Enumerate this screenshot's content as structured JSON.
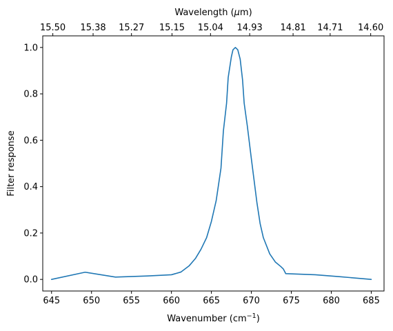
{
  "chart_data": {
    "type": "line",
    "xlabel": "Wavenumber (cm",
    "xlabel_sup": "−1",
    "xlabel_end": ")",
    "ylabel": "Filter response",
    "top_xlabel": "Wavelength (",
    "top_xlabel_greek": "μ",
    "top_xlabel_end": "m)",
    "xlim": [
      643.9,
      686.6
    ],
    "ylim": [
      -0.05,
      1.05
    ],
    "grid": false,
    "line_color": "#1f77b4",
    "x_ticks": [
      645,
      650,
      655,
      660,
      665,
      670,
      675,
      680,
      685
    ],
    "x_tick_labels": [
      "645",
      "650",
      "655",
      "660",
      "665",
      "670",
      "675",
      "680",
      "685"
    ],
    "y_ticks": [
      0.0,
      0.2,
      0.4,
      0.6,
      0.8,
      1.0
    ],
    "y_tick_labels": [
      "0.0",
      "0.2",
      "0.4",
      "0.6",
      "0.8",
      "1.0"
    ],
    "top_ticks": [
      {
        "x": 645.16,
        "label": "15.50"
      },
      {
        "x": 650.2,
        "label": "15.38"
      },
      {
        "x": 655.0,
        "label": "15.27"
      },
      {
        "x": 660.07,
        "label": "15.15"
      },
      {
        "x": 664.89,
        "label": "15.04"
      },
      {
        "x": 669.79,
        "label": "14.93"
      },
      {
        "x": 675.22,
        "label": "14.81"
      },
      {
        "x": 679.86,
        "label": "14.71"
      },
      {
        "x": 684.93,
        "label": "14.60"
      }
    ],
    "series": [
      {
        "values": [
          [
            645.0,
            0.0
          ],
          [
            649.2,
            0.031
          ],
          [
            653.0,
            0.01
          ],
          [
            657.0,
            0.015
          ],
          [
            660.0,
            0.02
          ],
          [
            661.2,
            0.032
          ],
          [
            662.2,
            0.058
          ],
          [
            663.0,
            0.09
          ],
          [
            663.7,
            0.13
          ],
          [
            664.4,
            0.18
          ],
          [
            665.0,
            0.25
          ],
          [
            665.6,
            0.34
          ],
          [
            665.9,
            0.41
          ],
          [
            666.2,
            0.48
          ],
          [
            666.5,
            0.64
          ],
          [
            666.9,
            0.76
          ],
          [
            667.1,
            0.87
          ],
          [
            667.5,
            0.96
          ],
          [
            667.7,
            0.99
          ],
          [
            668.0,
            1.0
          ],
          [
            668.3,
            0.99
          ],
          [
            668.6,
            0.95
          ],
          [
            668.9,
            0.86
          ],
          [
            669.1,
            0.76
          ],
          [
            669.5,
            0.66
          ],
          [
            670.0,
            0.52
          ],
          [
            670.7,
            0.33
          ],
          [
            671.1,
            0.24
          ],
          [
            671.5,
            0.18
          ],
          [
            672.3,
            0.11
          ],
          [
            673.0,
            0.075
          ],
          [
            673.7,
            0.055
          ],
          [
            674.0,
            0.045
          ],
          [
            674.3,
            0.025
          ],
          [
            678.0,
            0.02
          ],
          [
            681.0,
            0.012
          ],
          [
            685.0,
            0.0
          ]
        ]
      }
    ]
  }
}
